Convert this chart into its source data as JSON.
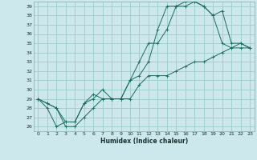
{
  "title": "",
  "xlabel": "Humidex (Indice chaleur)",
  "bg_color": "#cce8ec",
  "grid_color": "#99cccc",
  "line_color": "#1a6b5e",
  "xlim": [
    -0.5,
    23.5
  ],
  "ylim": [
    25.5,
    39.5
  ],
  "yticks": [
    26,
    27,
    28,
    29,
    30,
    31,
    32,
    33,
    34,
    35,
    36,
    37,
    38,
    39
  ],
  "xticks": [
    0,
    1,
    2,
    3,
    4,
    5,
    6,
    7,
    8,
    9,
    10,
    11,
    12,
    13,
    14,
    15,
    16,
    17,
    18,
    19,
    20,
    21,
    22,
    23
  ],
  "line1_x": [
    0,
    1,
    2,
    3,
    4,
    5,
    6,
    7,
    8,
    9,
    10,
    11,
    12,
    13,
    14,
    15,
    16,
    17,
    18,
    19,
    20,
    21,
    22,
    23
  ],
  "line1_y": [
    29,
    28.5,
    28,
    26.5,
    26.5,
    28.5,
    29.5,
    29,
    29,
    29,
    31,
    33,
    35,
    35,
    36.5,
    39,
    39,
    39.5,
    39,
    38,
    35,
    34.5,
    35,
    34.5
  ],
  "line2_x": [
    0,
    1,
    2,
    3,
    4,
    5,
    6,
    7,
    8,
    9,
    10,
    11,
    12,
    13,
    14,
    15,
    16,
    17,
    18,
    19,
    20,
    21,
    22,
    23
  ],
  "line2_y": [
    29,
    28,
    26,
    26.5,
    26.5,
    28.5,
    29,
    30,
    29,
    29,
    31,
    31.5,
    33,
    36.5,
    39,
    39,
    39.5,
    39.5,
    39,
    38,
    38.5,
    35,
    35,
    34.5
  ],
  "line3_x": [
    0,
    1,
    2,
    3,
    4,
    5,
    6,
    7,
    8,
    9,
    10,
    11,
    12,
    13,
    14,
    15,
    16,
    17,
    18,
    19,
    20,
    21,
    22,
    23
  ],
  "line3_y": [
    29,
    28.5,
    28,
    26,
    26,
    27,
    28,
    29,
    29,
    29,
    29,
    30.5,
    31.5,
    31.5,
    31.5,
    32,
    32.5,
    33,
    33,
    33.5,
    34,
    34.5,
    34.5,
    34.5
  ]
}
